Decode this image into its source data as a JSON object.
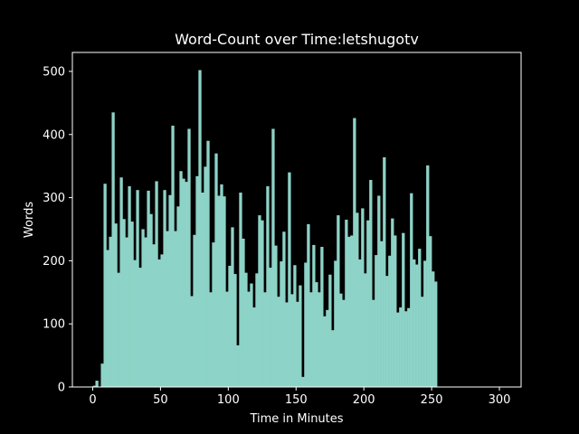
{
  "chart_data": {
    "type": "bar",
    "title": "Word-Count over Time:letshugotv",
    "xlabel": "Time in Minutes",
    "ylabel": "Words",
    "xlim": [
      -15,
      316
    ],
    "ylim": [
      0,
      530
    ],
    "xticks": [
      0,
      50,
      100,
      150,
      200,
      250,
      300
    ],
    "yticks": [
      0,
      100,
      200,
      300,
      400,
      500
    ],
    "grid": false,
    "bar_color": "#8dd3c7",
    "background": "#000000",
    "x_start": 0,
    "x_step": 2,
    "values": [
      2,
      10,
      0,
      37,
      322,
      217,
      238,
      435,
      259,
      181,
      332,
      266,
      237,
      318,
      262,
      201,
      312,
      189,
      250,
      237,
      311,
      274,
      226,
      326,
      202,
      210,
      312,
      247,
      304,
      414,
      247,
      286,
      342,
      330,
      325,
      409,
      144,
      241,
      334,
      502,
      308,
      349,
      390,
      150,
      229,
      370,
      303,
      321,
      302,
      151,
      192,
      253,
      179,
      66,
      308,
      235,
      181,
      151,
      164,
      126,
      180,
      272,
      264,
      150,
      318,
      189,
      409,
      224,
      143,
      199,
      246,
      134,
      340,
      147,
      193,
      135,
      161,
      16,
      197,
      258,
      150,
      225,
      166,
      150,
      222,
      112,
      122,
      178,
      90,
      200,
      272,
      148,
      138,
      265,
      238,
      240,
      426,
      276,
      202,
      283,
      180,
      264,
      328,
      138,
      209,
      303,
      231,
      364,
      176,
      208,
      267,
      240,
      118,
      126,
      244,
      120,
      125,
      307,
      202,
      194,
      219,
      143,
      200,
      351,
      239,
      183,
      167
    ]
  }
}
